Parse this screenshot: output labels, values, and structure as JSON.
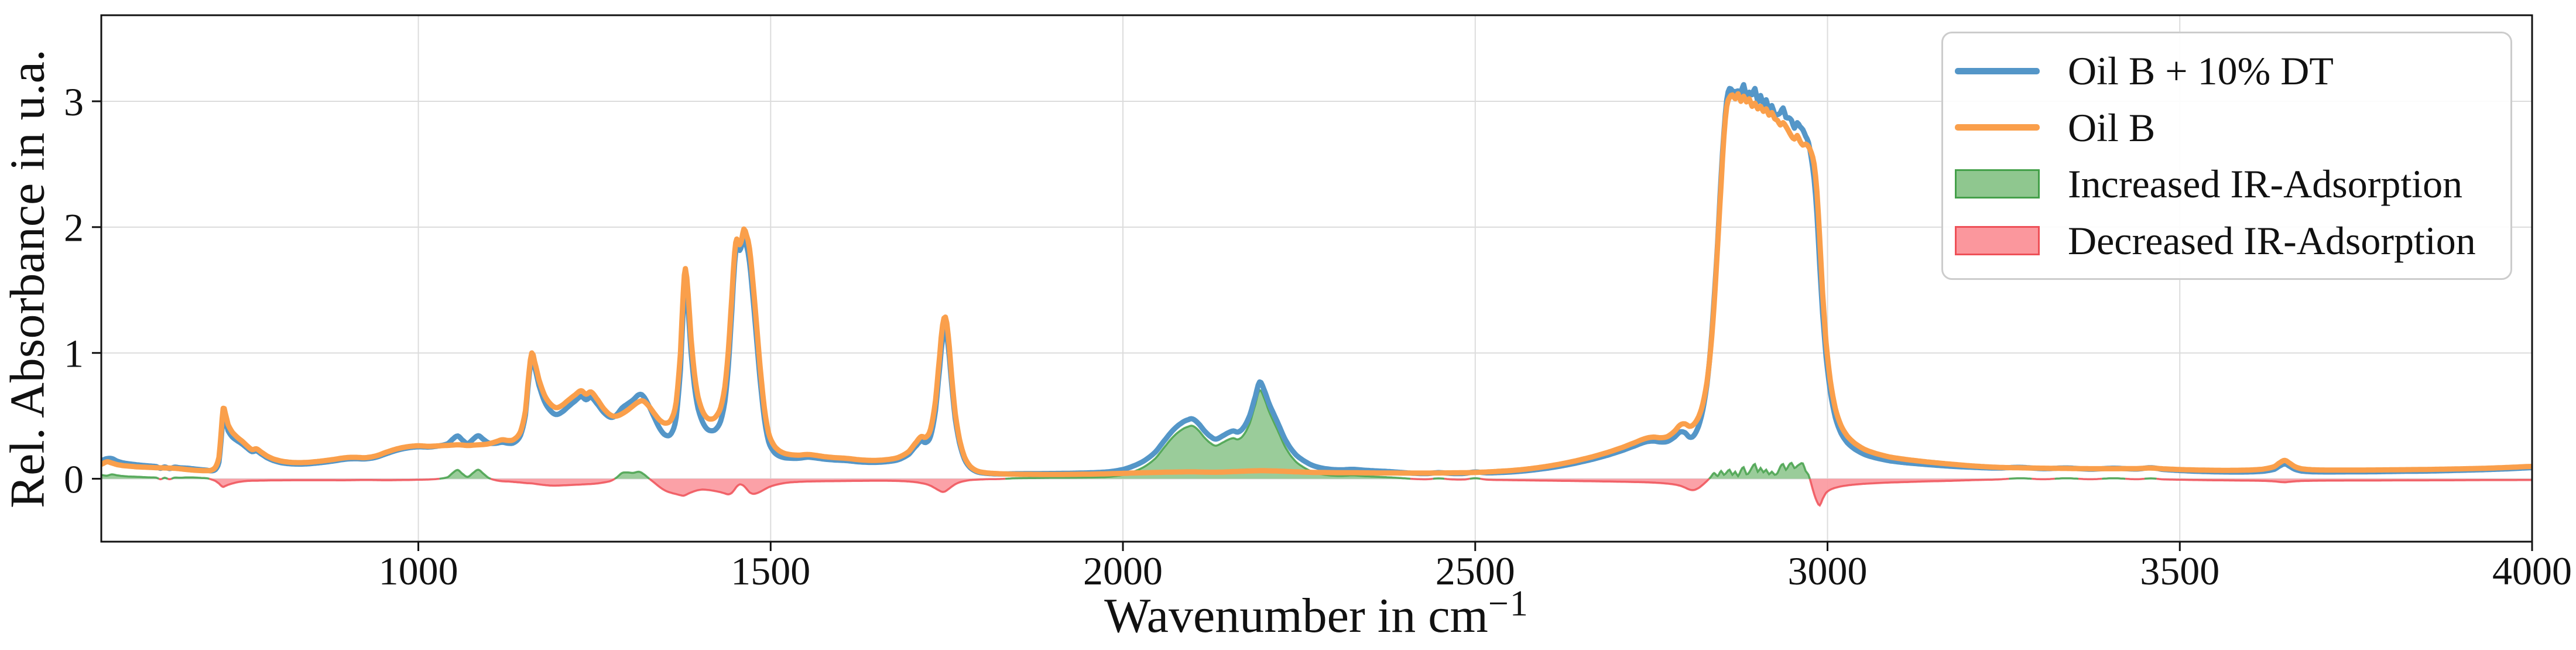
{
  "axes": {
    "ylabel": "Rel. Absorbance in u.a.",
    "xlabel_main": "Wavenumber in cm",
    "xlabel_sup": "−1",
    "grid_color": "#dcdcdc",
    "spine_color": "#111111",
    "text_color": "#111111"
  },
  "chart_data": {
    "type": "line",
    "title": "",
    "xlabel": "Wavenumber in cm^-1",
    "ylabel": "Rel. Absorbance in u.a.",
    "xlim": [
      550,
      4000
    ],
    "ylim": [
      -0.5,
      3.684
    ],
    "xticks": [
      1000,
      1500,
      2000,
      2500,
      3000,
      3500,
      4000
    ],
    "yticks": [
      0,
      1,
      2,
      3
    ],
    "grid": true,
    "legend_position": "upper right",
    "series": [
      {
        "name": "Oil B + 10% DT",
        "color": "#5496c8"
      },
      {
        "name": "Oil B",
        "color": "#fa9f4b"
      }
    ],
    "fills": [
      {
        "name": "Increased IR-Adsorption",
        "fill": "#8fc78f",
        "edge": "#44a04a"
      },
      {
        "name": "Decreased IR-Adsorption",
        "fill": "#fb979d",
        "edge": "#ee5057"
      }
    ],
    "points_format": [
      "wavenumber_cm-1",
      "oil_b_absorbance",
      "difference_oilB10DT_minus_oilB"
    ],
    "points": [
      [
        550,
        0.115,
        0.03
      ],
      [
        558,
        0.135,
        0.025
      ],
      [
        565,
        0.125,
        0.035
      ],
      [
        572,
        0.113,
        0.028
      ],
      [
        580,
        0.105,
        0.022
      ],
      [
        590,
        0.1,
        0.018
      ],
      [
        600,
        0.095,
        0.016
      ],
      [
        615,
        0.091,
        0.012
      ],
      [
        628,
        0.088,
        0.009
      ],
      [
        634,
        0.087,
        -0.004
      ],
      [
        640,
        0.086,
        0.008
      ],
      [
        647,
        0.085,
        -0.004
      ],
      [
        654,
        0.083,
        0.009
      ],
      [
        662,
        0.079,
        0.008
      ],
      [
        672,
        0.073,
        0.011
      ],
      [
        682,
        0.068,
        0.01
      ],
      [
        692,
        0.065,
        0.007
      ],
      [
        700,
        0.064,
        0.004
      ],
      [
        706,
        0.068,
        -0.005
      ],
      [
        712,
        0.092,
        -0.018
      ],
      [
        717,
        0.17,
        -0.038
      ],
      [
        720,
        0.36,
        -0.055
      ],
      [
        723,
        0.56,
        -0.065
      ],
      [
        726,
        0.52,
        -0.058
      ],
      [
        730,
        0.43,
        -0.048
      ],
      [
        736,
        0.37,
        -0.038
      ],
      [
        743,
        0.33,
        -0.028
      ],
      [
        750,
        0.298,
        -0.022
      ],
      [
        757,
        0.262,
        -0.018
      ],
      [
        764,
        0.232,
        -0.016
      ],
      [
        770,
        0.238,
        -0.016
      ],
      [
        777,
        0.212,
        -0.015
      ],
      [
        785,
        0.182,
        -0.014
      ],
      [
        794,
        0.158,
        -0.013
      ],
      [
        806,
        0.14,
        -0.013
      ],
      [
        820,
        0.13,
        -0.012
      ],
      [
        838,
        0.129,
        -0.012
      ],
      [
        858,
        0.138,
        -0.012
      ],
      [
        878,
        0.152,
        -0.012
      ],
      [
        898,
        0.168,
        -0.012
      ],
      [
        912,
        0.17,
        -0.011
      ],
      [
        925,
        0.168,
        -0.01
      ],
      [
        940,
        0.182,
        -0.011
      ],
      [
        955,
        0.212,
        -0.012
      ],
      [
        970,
        0.238,
        -0.011
      ],
      [
        985,
        0.255,
        -0.01
      ],
      [
        1000,
        0.262,
        -0.008
      ],
      [
        1015,
        0.258,
        -0.006
      ],
      [
        1030,
        0.262,
        0.0
      ],
      [
        1042,
        0.265,
        0.014
      ],
      [
        1050,
        0.268,
        0.052
      ],
      [
        1056,
        0.27,
        0.07
      ],
      [
        1062,
        0.268,
        0.042
      ],
      [
        1070,
        0.264,
        0.015
      ],
      [
        1078,
        0.267,
        0.048
      ],
      [
        1085,
        0.27,
        0.072
      ],
      [
        1092,
        0.272,
        0.042
      ],
      [
        1100,
        0.278,
        0.006
      ],
      [
        1110,
        0.294,
        -0.012
      ],
      [
        1119,
        0.31,
        -0.02
      ],
      [
        1128,
        0.304,
        -0.022
      ],
      [
        1136,
        0.314,
        -0.026
      ],
      [
        1145,
        0.375,
        -0.03
      ],
      [
        1152,
        0.54,
        -0.034
      ],
      [
        1157,
        0.84,
        -0.036
      ],
      [
        1161,
        1.0,
        -0.037
      ],
      [
        1165,
        0.93,
        -0.04
      ],
      [
        1171,
        0.79,
        -0.045
      ],
      [
        1179,
        0.665,
        -0.05
      ],
      [
        1187,
        0.598,
        -0.054
      ],
      [
        1195,
        0.566,
        -0.055
      ],
      [
        1203,
        0.58,
        -0.053
      ],
      [
        1213,
        0.625,
        -0.051
      ],
      [
        1223,
        0.668,
        -0.048
      ],
      [
        1231,
        0.7,
        -0.046
      ],
      [
        1238,
        0.672,
        -0.044
      ],
      [
        1245,
        0.69,
        -0.042
      ],
      [
        1253,
        0.638,
        -0.038
      ],
      [
        1263,
        0.558,
        -0.03
      ],
      [
        1273,
        0.506,
        -0.018
      ],
      [
        1281,
        0.498,
        0.008
      ],
      [
        1289,
        0.516,
        0.046
      ],
      [
        1297,
        0.545,
        0.05
      ],
      [
        1305,
        0.58,
        0.047
      ],
      [
        1313,
        0.612,
        0.056
      ],
      [
        1319,
        0.618,
        0.04
      ],
      [
        1327,
        0.578,
        0.004
      ],
      [
        1335,
        0.518,
        -0.032
      ],
      [
        1343,
        0.464,
        -0.068
      ],
      [
        1351,
        0.442,
        -0.096
      ],
      [
        1359,
        0.472,
        -0.112
      ],
      [
        1366,
        0.61,
        -0.122
      ],
      [
        1372,
        1.0,
        -0.131
      ],
      [
        1376,
        1.48,
        -0.135
      ],
      [
        1379,
        1.67,
        -0.13
      ],
      [
        1383,
        1.46,
        -0.119
      ],
      [
        1387,
        1.12,
        -0.109
      ],
      [
        1392,
        0.83,
        -0.099
      ],
      [
        1397,
        0.65,
        -0.091
      ],
      [
        1403,
        0.542,
        -0.086
      ],
      [
        1409,
        0.488,
        -0.088
      ],
      [
        1415,
        0.474,
        -0.092
      ],
      [
        1422,
        0.492,
        -0.099
      ],
      [
        1429,
        0.565,
        -0.107
      ],
      [
        1435,
        0.73,
        -0.117
      ],
      [
        1440,
        1.02,
        -0.124
      ],
      [
        1445,
        1.45,
        -0.112
      ],
      [
        1449,
        1.8,
        -0.085
      ],
      [
        1452,
        1.905,
        -0.062
      ],
      [
        1456,
        1.86,
        -0.045
      ],
      [
        1459,
        1.905,
        -0.048
      ],
      [
        1462,
        1.985,
        -0.058
      ],
      [
        1466,
        1.93,
        -0.082
      ],
      [
        1470,
        1.83,
        -0.108
      ],
      [
        1475,
        1.555,
        -0.12
      ],
      [
        1480,
        1.23,
        -0.116
      ],
      [
        1485,
        0.89,
        -0.104
      ],
      [
        1491,
        0.565,
        -0.086
      ],
      [
        1497,
        0.365,
        -0.068
      ],
      [
        1504,
        0.272,
        -0.054
      ],
      [
        1511,
        0.228,
        -0.044
      ],
      [
        1519,
        0.203,
        -0.035
      ],
      [
        1528,
        0.192,
        -0.029
      ],
      [
        1540,
        0.188,
        -0.025
      ],
      [
        1552,
        0.193,
        -0.022
      ],
      [
        1563,
        0.187,
        -0.021
      ],
      [
        1576,
        0.176,
        -0.02
      ],
      [
        1591,
        0.168,
        -0.019
      ],
      [
        1608,
        0.162,
        -0.018
      ],
      [
        1626,
        0.151,
        -0.017
      ],
      [
        1645,
        0.146,
        -0.016
      ],
      [
        1663,
        0.151,
        -0.016
      ],
      [
        1681,
        0.169,
        -0.018
      ],
      [
        1696,
        0.216,
        -0.022
      ],
      [
        1707,
        0.292,
        -0.028
      ],
      [
        1714,
        0.336,
        -0.035
      ],
      [
        1720,
        0.33,
        -0.042
      ],
      [
        1727,
        0.395,
        -0.056
      ],
      [
        1734,
        0.62,
        -0.077
      ],
      [
        1740,
        0.98,
        -0.096
      ],
      [
        1744,
        1.22,
        -0.105
      ],
      [
        1748,
        1.285,
        -0.1
      ],
      [
        1752,
        1.14,
        -0.084
      ],
      [
        1757,
        0.81,
        -0.063
      ],
      [
        1762,
        0.52,
        -0.044
      ],
      [
        1768,
        0.315,
        -0.029
      ],
      [
        1775,
        0.175,
        -0.019
      ],
      [
        1783,
        0.1,
        -0.011
      ],
      [
        1793,
        0.062,
        -0.007
      ],
      [
        1806,
        0.047,
        -0.004
      ],
      [
        1826,
        0.04,
        -0.002
      ],
      [
        1846,
        0.036,
        0.004
      ],
      [
        1870,
        0.035,
        0.006
      ],
      [
        1896,
        0.034,
        0.008
      ],
      [
        1926,
        0.035,
        0.009
      ],
      [
        1956,
        0.037,
        0.011
      ],
      [
        1981,
        0.04,
        0.016
      ],
      [
        2001,
        0.043,
        0.032
      ],
      [
        2016,
        0.046,
        0.058
      ],
      [
        2031,
        0.048,
        0.098
      ],
      [
        2046,
        0.05,
        0.162
      ],
      [
        2059,
        0.052,
        0.252
      ],
      [
        2071,
        0.053,
        0.332
      ],
      [
        2083,
        0.054,
        0.388
      ],
      [
        2093,
        0.055,
        0.415
      ],
      [
        2099,
        0.055,
        0.42
      ],
      [
        2107,
        0.054,
        0.386
      ],
      [
        2116,
        0.053,
        0.326
      ],
      [
        2125,
        0.052,
        0.281
      ],
      [
        2132,
        0.052,
        0.263
      ],
      [
        2141,
        0.053,
        0.286
      ],
      [
        2150,
        0.055,
        0.312
      ],
      [
        2157,
        0.057,
        0.323
      ],
      [
        2163,
        0.058,
        0.313
      ],
      [
        2171,
        0.06,
        0.346
      ],
      [
        2180,
        0.062,
        0.442
      ],
      [
        2188,
        0.063,
        0.592
      ],
      [
        2194,
        0.064,
        0.705
      ],
      [
        2200,
        0.064,
        0.648
      ],
      [
        2207,
        0.063,
        0.54
      ],
      [
        2214,
        0.062,
        0.453
      ],
      [
        2221,
        0.061,
        0.368
      ],
      [
        2229,
        0.059,
        0.268
      ],
      [
        2237,
        0.057,
        0.193
      ],
      [
        2246,
        0.055,
        0.133
      ],
      [
        2256,
        0.053,
        0.093
      ],
      [
        2267,
        0.051,
        0.06
      ],
      [
        2279,
        0.05,
        0.039
      ],
      [
        2293,
        0.049,
        0.027
      ],
      [
        2309,
        0.048,
        0.023
      ],
      [
        2326,
        0.048,
        0.027
      ],
      [
        2343,
        0.047,
        0.021
      ],
      [
        2361,
        0.046,
        0.016
      ],
      [
        2379,
        0.046,
        0.011
      ],
      [
        2396,
        0.045,
        0.005
      ],
      [
        2414,
        0.045,
        -0.002
      ],
      [
        2432,
        0.045,
        -0.004
      ],
      [
        2448,
        0.046,
        0.003
      ],
      [
        2466,
        0.047,
        -0.005
      ],
      [
        2484,
        0.048,
        -0.006
      ],
      [
        2500,
        0.05,
        0.004
      ],
      [
        2516,
        0.054,
        -0.007
      ],
      [
        2532,
        0.059,
        -0.01
      ],
      [
        2559,
        0.069,
        -0.012
      ],
      [
        2586,
        0.086,
        -0.014
      ],
      [
        2613,
        0.109,
        -0.016
      ],
      [
        2640,
        0.139,
        -0.018
      ],
      [
        2666,
        0.174,
        -0.02
      ],
      [
        2689,
        0.211,
        -0.022
      ],
      [
        2709,
        0.249,
        -0.024
      ],
      [
        2726,
        0.286,
        -0.026
      ],
      [
        2741,
        0.319,
        -0.028
      ],
      [
        2753,
        0.331,
        -0.031
      ],
      [
        2763,
        0.326,
        -0.034
      ],
      [
        2773,
        0.336,
        -0.039
      ],
      [
        2783,
        0.378,
        -0.046
      ],
      [
        2791,
        0.428,
        -0.056
      ],
      [
        2798,
        0.436,
        -0.071
      ],
      [
        2804,
        0.417,
        -0.086
      ],
      [
        2810,
        0.432,
        -0.09
      ],
      [
        2817,
        0.492,
        -0.074
      ],
      [
        2823,
        0.594,
        -0.048
      ],
      [
        2829,
        0.77,
        -0.018
      ],
      [
        2834,
        1.02,
        0.012
      ],
      [
        2839,
        1.38,
        0.046
      ],
      [
        2844,
        1.85,
        0.022
      ],
      [
        2849,
        2.34,
        0.062
      ],
      [
        2853,
        2.72,
        0.032
      ],
      [
        2857,
        2.96,
        0.052
      ],
      [
        2861,
        3.03,
        0.072
      ],
      [
        2865,
        3.05,
        0.032
      ],
      [
        2869,
        3.02,
        0.056
      ],
      [
        2873,
        3.06,
        0.022
      ],
      [
        2877,
        3.0,
        0.066
      ],
      [
        2881,
        3.04,
        0.092
      ],
      [
        2885,
        2.995,
        0.036
      ],
      [
        2889,
        3.02,
        0.052
      ],
      [
        2893,
        2.96,
        0.092
      ],
      [
        2897,
        2.985,
        0.117
      ],
      [
        2901,
        2.94,
        0.056
      ],
      [
        2905,
        2.96,
        0.086
      ],
      [
        2909,
        2.92,
        0.052
      ],
      [
        2913,
        2.94,
        0.072
      ],
      [
        2917,
        2.89,
        0.036
      ],
      [
        2921,
        2.91,
        0.056
      ],
      [
        2925,
        2.862,
        0.032
      ],
      [
        2929,
        2.848,
        0.046
      ],
      [
        2933,
        2.812,
        0.096
      ],
      [
        2937,
        2.83,
        0.117
      ],
      [
        2941,
        2.8,
        0.072
      ],
      [
        2945,
        2.762,
        0.107
      ],
      [
        2949,
        2.722,
        0.126
      ],
      [
        2953,
        2.7,
        0.086
      ],
      [
        2957,
        2.728,
        0.102
      ],
      [
        2961,
        2.682,
        0.117
      ],
      [
        2965,
        2.652,
        0.122
      ],
      [
        2969,
        2.66,
        0.062
      ],
      [
        2973,
        2.64,
        0.032
      ],
      [
        2977,
        2.592,
        -0.042
      ],
      [
        2981,
        2.5,
        -0.122
      ],
      [
        2985,
        2.28,
        -0.182
      ],
      [
        2989,
        1.9,
        -0.212
      ],
      [
        2993,
        1.48,
        -0.162
      ],
      [
        2998,
        1.08,
        -0.112
      ],
      [
        3004,
        0.78,
        -0.087
      ],
      [
        3011,
        0.56,
        -0.072
      ],
      [
        3019,
        0.425,
        -0.061
      ],
      [
        3028,
        0.34,
        -0.053
      ],
      [
        3039,
        0.28,
        -0.046
      ],
      [
        3053,
        0.232,
        -0.04
      ],
      [
        3069,
        0.2,
        -0.035
      ],
      [
        3089,
        0.172,
        -0.03
      ],
      [
        3113,
        0.152,
        -0.026
      ],
      [
        3141,
        0.134,
        -0.021
      ],
      [
        3173,
        0.117,
        -0.017
      ],
      [
        3206,
        0.102,
        -0.011
      ],
      [
        3241,
        0.091,
        -0.006
      ],
      [
        3273,
        0.087,
        0.004
      ],
      [
        3306,
        0.084,
        -0.004
      ],
      [
        3339,
        0.082,
        0.004
      ],
      [
        3373,
        0.08,
        -0.004
      ],
      [
        3406,
        0.08,
        0.004
      ],
      [
        3439,
        0.081,
        -0.004
      ],
      [
        3459,
        0.085,
        0.003
      ],
      [
        3476,
        0.079,
        -0.005
      ],
      [
        3501,
        0.073,
        -0.008
      ],
      [
        3531,
        0.069,
        -0.011
      ],
      [
        3563,
        0.067,
        -0.013
      ],
      [
        3596,
        0.069,
        -0.015
      ],
      [
        3619,
        0.077,
        -0.017
      ],
      [
        3634,
        0.096,
        -0.021
      ],
      [
        3643,
        0.131,
        -0.026
      ],
      [
        3649,
        0.146,
        -0.028
      ],
      [
        3655,
        0.127,
        -0.025
      ],
      [
        3663,
        0.097,
        -0.021
      ],
      [
        3673,
        0.079,
        -0.018
      ],
      [
        3691,
        0.071,
        -0.016
      ],
      [
        3716,
        0.069,
        -0.015
      ],
      [
        3746,
        0.069,
        -0.014
      ],
      [
        3781,
        0.07,
        -0.014
      ],
      [
        3816,
        0.072,
        -0.013
      ],
      [
        3851,
        0.074,
        -0.013
      ],
      [
        3891,
        0.078,
        -0.012
      ],
      [
        3931,
        0.083,
        -0.011
      ],
      [
        3966,
        0.09,
        -0.011
      ],
      [
        4000,
        0.098,
        -0.01
      ]
    ]
  }
}
